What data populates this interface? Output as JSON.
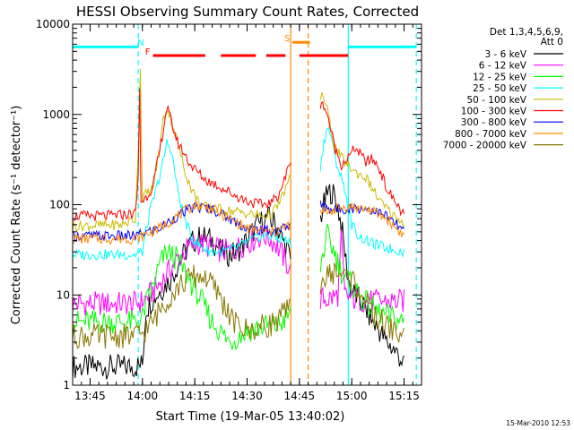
{
  "chart_data": {
    "type": "line",
    "title": "HESSI Observing Summary Count Rates, Corrected",
    "xlabel": "Start Time (19-Mar-05 13:40:02)",
    "ylabel": "Corrected Count Rate (s⁻¹ detector⁻¹)",
    "xunit": "minutes since 13:40:02",
    "xlim": [
      0,
      100
    ],
    "ylim": [
      1,
      10000
    ],
    "yscale": "log",
    "xticks": [
      {
        "x": 5,
        "label": "13:45"
      },
      {
        "x": 20,
        "label": "14:00"
      },
      {
        "x": 35,
        "label": "14:15"
      },
      {
        "x": 50,
        "label": "14:30"
      },
      {
        "x": 65,
        "label": "14:45"
      },
      {
        "x": 80,
        "label": "15:00"
      },
      {
        "x": 95,
        "label": "15:15"
      }
    ],
    "yticks": [
      {
        "y": 1,
        "label": "1"
      },
      {
        "y": 10,
        "label": "10"
      },
      {
        "y": 100,
        "label": "100"
      },
      {
        "y": 1000,
        "label": "1000"
      },
      {
        "y": 10000,
        "label": "10000"
      }
    ],
    "legend_header": [
      "Det 1,3,4,5,6,9,",
      "Att 0"
    ],
    "legend_placement": "right",
    "series": [
      {
        "name": "3 - 6 keV",
        "color": "#000000",
        "x": [
          0,
          18,
          20,
          21,
          23,
          25,
          28,
          31,
          34,
          37,
          40,
          43,
          45,
          47,
          50,
          53,
          56,
          58,
          59,
          60,
          61,
          62,
          62.5,
          65,
          66,
          67,
          68,
          69,
          71,
          72,
          73,
          74,
          75,
          76,
          77,
          78,
          79,
          80,
          82,
          84,
          86,
          88,
          90,
          92,
          94,
          95
        ],
        "y": [
          1.6,
          1.6,
          1.7,
          7,
          9,
          11,
          15,
          25,
          38,
          45,
          40,
          30,
          28,
          30,
          40,
          60,
          72,
          62,
          52,
          42,
          35,
          28,
          25,
          null,
          null,
          null,
          null,
          null,
          70,
          100,
          130,
          140,
          125,
          95,
          60,
          30,
          15,
          11,
          9,
          7,
          5,
          4,
          3,
          2.5,
          2,
          1.6
        ]
      },
      {
        "name": "6 - 12 keV",
        "color": "#ff00ff",
        "x": [
          0,
          18,
          20,
          22,
          24,
          26,
          29,
          32,
          35,
          38,
          41,
          45,
          50,
          55,
          58,
          60,
          62,
          62.5,
          65,
          66,
          67,
          68,
          69,
          70,
          71,
          73,
          75,
          76,
          77,
          78,
          79,
          80,
          82,
          84,
          87,
          90,
          93,
          95
        ],
        "y": [
          8,
          8,
          8.5,
          10,
          12,
          15,
          22,
          30,
          38,
          36,
          32,
          30,
          38,
          46,
          38,
          28,
          20,
          18,
          null,
          null,
          null,
          null,
          null,
          null,
          9,
          9,
          9.5,
          10,
          40,
          10,
          9.5,
          9,
          9,
          8.5,
          8.5,
          8.5,
          8.5,
          8.5
        ]
      },
      {
        "name": "12 - 25 keV",
        "color": "#00ff00",
        "x": [
          0,
          18,
          20,
          21,
          23,
          25,
          27,
          30,
          33,
          36,
          40,
          45,
          50,
          55,
          58,
          60,
          62,
          62.5,
          65,
          66,
          67,
          68,
          69,
          70,
          71,
          72,
          73,
          75,
          77,
          80,
          83,
          86,
          89,
          92,
          95
        ],
        "y": [
          5,
          5,
          5.5,
          8,
          12,
          22,
          30,
          25,
          16,
          10,
          5,
          3,
          4,
          4.5,
          4.5,
          5,
          6,
          6,
          null,
          null,
          null,
          null,
          null,
          null,
          20,
          32,
          45,
          30,
          18,
          13,
          9,
          7,
          6,
          5.5,
          5
        ]
      },
      {
        "name": "25 - 50 keV",
        "color": "#00ffff",
        "x": [
          0,
          18,
          20,
          21,
          22,
          24,
          26,
          27,
          28,
          29,
          30,
          32,
          34,
          36,
          38,
          40,
          43,
          46,
          50,
          54,
          57,
          59,
          61,
          62.5,
          65,
          66,
          67,
          68,
          69,
          70,
          71,
          72,
          73,
          74,
          75,
          77,
          78,
          79,
          80,
          82,
          84,
          86,
          88,
          90,
          92,
          95
        ],
        "y": [
          28,
          28,
          30,
          50,
          80,
          150,
          300,
          490,
          430,
          280,
          150,
          70,
          45,
          36,
          32,
          30,
          30,
          32,
          38,
          45,
          45,
          42,
          40,
          38,
          null,
          null,
          null,
          null,
          null,
          null,
          250,
          500,
          700,
          600,
          350,
          200,
          150,
          90,
          60,
          45,
          40,
          37,
          35,
          33,
          32,
          30
        ]
      },
      {
        "name": "50 - 100 keV",
        "color": "#ccbb00",
        "x": [
          0,
          14,
          18,
          19,
          19.4,
          20,
          21,
          23,
          25,
          26,
          27,
          28,
          30,
          32,
          34,
          36,
          38,
          40,
          43,
          46,
          50,
          54,
          57,
          59,
          61,
          62.5,
          65,
          66,
          67,
          68,
          69,
          70,
          71,
          71.5,
          72,
          73,
          75,
          77,
          79,
          81,
          84,
          86,
          88,
          90,
          93,
          95
        ],
        "y": [
          58,
          60,
          70,
          700,
          3400,
          120,
          130,
          150,
          450,
          900,
          1150,
          950,
          500,
          250,
          150,
          110,
          95,
          90,
          88,
          85,
          80,
          75,
          78,
          100,
          150,
          200,
          null,
          null,
          null,
          null,
          null,
          null,
          1600,
          1650,
          1500,
          1100,
          450,
          330,
          270,
          230,
          200,
          150,
          110,
          90,
          70,
          62
        ]
      },
      {
        "name": "100 - 300 keV",
        "color": "#ff0000",
        "x": [
          0,
          10,
          18,
          18.8,
          19.2,
          19.6,
          20,
          21,
          23,
          25,
          27,
          28,
          30,
          34,
          38,
          42,
          46,
          50,
          54,
          57,
          59,
          61,
          62.5,
          65,
          66,
          67,
          68,
          69,
          70,
          71,
          72,
          73,
          75,
          77,
          79,
          81,
          82,
          84,
          86,
          88,
          90,
          93,
          95
        ],
        "y": [
          75,
          75,
          80,
          200,
          2000,
          110,
          110,
          120,
          160,
          400,
          1200,
          900,
          500,
          270,
          190,
          160,
          130,
          110,
          100,
          105,
          130,
          200,
          320,
          null,
          null,
          null,
          null,
          null,
          null,
          1200,
          1300,
          1000,
          450,
          280,
          330,
          430,
          380,
          300,
          320,
          250,
          150,
          100,
          75
        ]
      },
      {
        "name": "300 - 800 keV",
        "color": "#0000ff",
        "x": [
          0,
          18,
          20,
          25,
          30,
          35,
          40,
          45,
          50,
          55,
          58,
          60,
          62.5,
          65,
          66,
          67,
          68,
          69,
          70,
          71,
          73,
          75,
          77,
          80,
          85,
          90,
          95
        ],
        "y": [
          45,
          45,
          48,
          55,
          75,
          95,
          90,
          70,
          55,
          52,
          50,
          55,
          60,
          null,
          null,
          null,
          null,
          null,
          null,
          100,
          92,
          88,
          90,
          92,
          90,
          75,
          50
        ]
      },
      {
        "name": "800 - 7000 keV",
        "color": "#ff8800",
        "x": [
          0,
          18,
          20,
          25,
          30,
          35,
          40,
          45,
          50,
          55,
          58,
          60,
          62.5,
          65,
          66,
          67,
          68,
          69,
          70,
          71,
          73,
          75,
          77,
          80,
          85,
          90,
          95
        ],
        "y": [
          42,
          42,
          45,
          55,
          75,
          100,
          90,
          70,
          55,
          50,
          50,
          55,
          60,
          null,
          null,
          null,
          null,
          null,
          null,
          80,
          85,
          88,
          92,
          95,
          88,
          70,
          45
        ]
      },
      {
        "name": "7000 - 20000 keV",
        "color": "#887700",
        "x": [
          0,
          18,
          20,
          23,
          26,
          30,
          34,
          38,
          42,
          46,
          50,
          55,
          58,
          60,
          62.5,
          65,
          66,
          67,
          68,
          69,
          70,
          71,
          73,
          75,
          77,
          80,
          83,
          86,
          89,
          92,
          95
        ],
        "y": [
          3.5,
          3.5,
          3.8,
          5,
          8,
          12,
          16,
          16,
          10,
          5,
          4,
          4.5,
          5,
          6,
          7,
          null,
          null,
          null,
          null,
          null,
          null,
          14,
          16,
          18,
          17,
          15,
          10,
          6,
          5,
          4,
          3.5
        ]
      }
    ],
    "vertical_lines": [
      {
        "x": 18.8,
        "color": "#00ffff",
        "style": "dashed"
      },
      {
        "x": 62.5,
        "color": "#ff8800",
        "style": "solid"
      },
      {
        "x": 67.5,
        "color": "#ff8800",
        "style": "dashed"
      },
      {
        "x": 79,
        "color": "#00ffff",
        "style": "solid"
      },
      {
        "x": 98.5,
        "color": "#00ffff",
        "style": "dashed"
      }
    ],
    "flag_bars": [
      {
        "label": "N",
        "color": "#00ffff",
        "segments": [
          [
            0,
            18.8
          ],
          [
            79,
            98.5
          ]
        ],
        "y": 5600,
        "label_x": 19.5,
        "label_y": 5800
      },
      {
        "label": "F",
        "color": "#ff0000",
        "segments": [
          [
            23,
            38
          ],
          [
            42.5,
            52.5
          ],
          [
            55.5,
            61
          ],
          [
            65,
            79
          ]
        ],
        "y": 4500,
        "label_x": 21.5,
        "label_y": 4600
      },
      {
        "label": "S",
        "color": "#ff8800",
        "segments": [
          [
            63,
            68
          ]
        ],
        "y": 6300,
        "label_x": 61.5,
        "label_y": 6500
      }
    ]
  },
  "timestamp": "15-Mar-2010 12:53"
}
